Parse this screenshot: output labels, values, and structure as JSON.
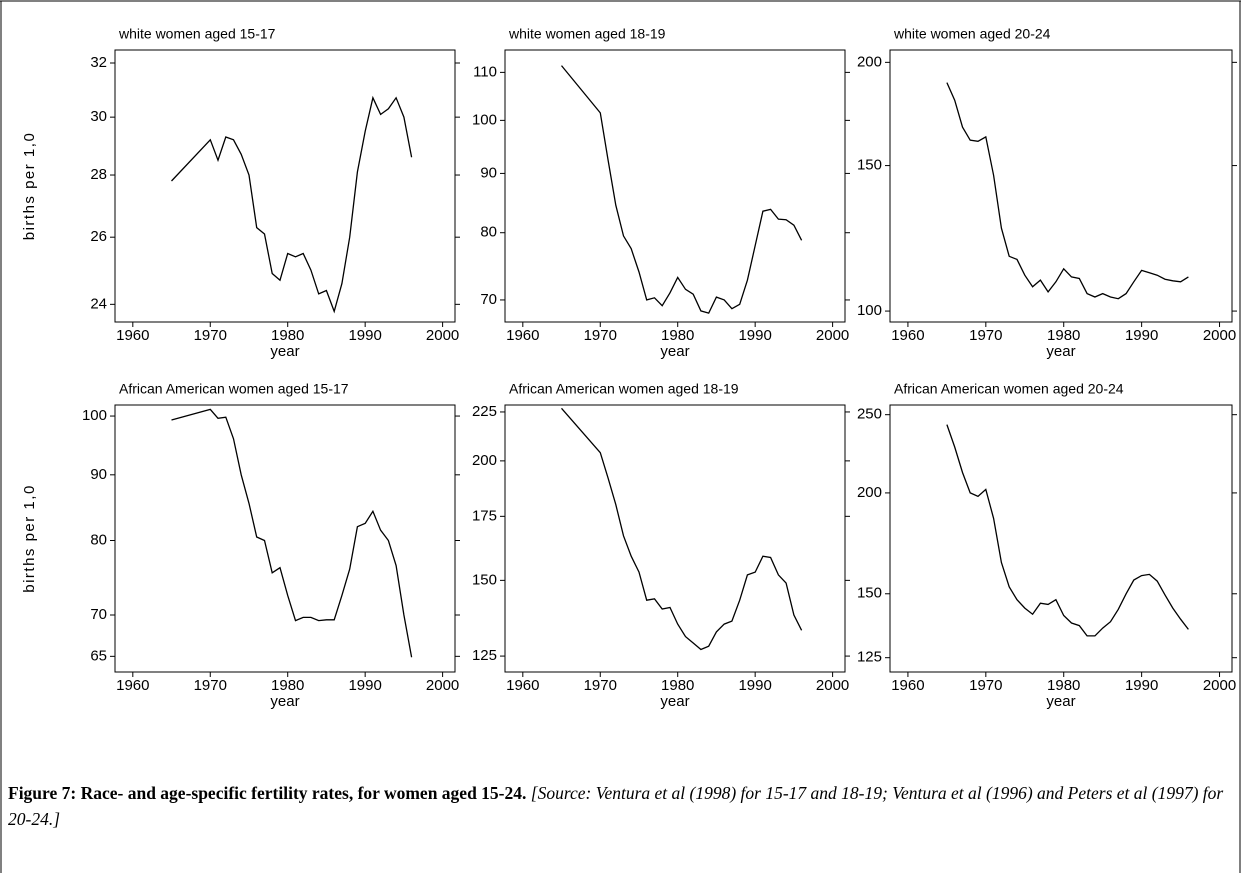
{
  "chart_data": [
    {
      "type": "line",
      "title": "white women aged 15-17",
      "xlabel": "year",
      "ylabel": "births per 1,0",
      "color": "#000000",
      "ylog": true,
      "x": [
        1965,
        1970,
        1971,
        1972,
        1973,
        1974,
        1975,
        1976,
        1977,
        1978,
        1979,
        1980,
        1981,
        1982,
        1983,
        1984,
        1985,
        1986,
        1987,
        1988,
        1989,
        1990,
        1991,
        1992,
        1993,
        1994,
        1995,
        1996
      ],
      "values": [
        27.8,
        29.2,
        28.5,
        29.3,
        29.2,
        28.7,
        28.0,
        26.3,
        26.1,
        24.9,
        24.7,
        25.5,
        25.4,
        25.5,
        25.0,
        24.3,
        24.4,
        23.8,
        24.6,
        26.0,
        28.1,
        29.5,
        30.7,
        30.1,
        30.3,
        30.7,
        30.0,
        28.6
      ],
      "xlim": [
        1957.7,
        2001.6
      ],
      "xticks": [
        1960,
        1970,
        1980,
        1990,
        2000
      ],
      "ylim": [
        23.5,
        32.5
      ],
      "yticks": [
        24,
        26,
        28,
        30,
        32
      ]
    },
    {
      "type": "line",
      "title": "white women aged 18-19",
      "xlabel": "year",
      "color": "#000000",
      "ylog": true,
      "x": [
        1965,
        1970,
        1971,
        1972,
        1973,
        1974,
        1975,
        1976,
        1977,
        1978,
        1979,
        1980,
        1981,
        1982,
        1983,
        1984,
        1985,
        1986,
        1987,
        1988,
        1989,
        1990,
        1991,
        1992,
        1993,
        1994,
        1995,
        1996
      ],
      "values": [
        111.5,
        101.5,
        92.5,
        84.5,
        79.5,
        77.5,
        74,
        70,
        70.3,
        69.2,
        71,
        73.2,
        71.5,
        70.8,
        68.5,
        68.2,
        70.4,
        70,
        68.8,
        69.4,
        72.8,
        78,
        83.5,
        83.8,
        82.2,
        82.1,
        81.2,
        78.8
      ],
      "xlim": [
        1957.7,
        2001.6
      ],
      "xticks": [
        1960,
        1970,
        1980,
        1990,
        2000
      ],
      "ylim": [
        67,
        115
      ],
      "yticks": [
        70,
        80,
        90,
        100,
        110
      ]
    },
    {
      "type": "line",
      "title": "white women aged 20-24",
      "xlabel": "year",
      "color": "#000000",
      "ylog": true,
      "x": [
        1965,
        1966,
        1967,
        1968,
        1969,
        1970,
        1971,
        1972,
        1973,
        1974,
        1975,
        1976,
        1977,
        1978,
        1979,
        1980,
        1981,
        1982,
        1983,
        1984,
        1985,
        1986,
        1987,
        1988,
        1989,
        1990,
        1991,
        1992,
        1993,
        1994,
        1995,
        1996
      ],
      "values": [
        189,
        180,
        167,
        161,
        160.5,
        162.5,
        146,
        126,
        116.5,
        115.5,
        110.5,
        107,
        109,
        105.5,
        108.5,
        112.5,
        110,
        109.5,
        105,
        104,
        105,
        104,
        103.5,
        105,
        108.5,
        112,
        111.3,
        110.5,
        109.3,
        108.8,
        108.5,
        110
      ],
      "xlim": [
        1957.7,
        2001.6
      ],
      "xticks": [
        1960,
        1970,
        1980,
        1990,
        2000
      ],
      "ylim": [
        97,
        207
      ],
      "yticks": [
        100,
        150,
        200
      ]
    },
    {
      "type": "line",
      "title": "African American women aged 15-17",
      "xlabel": "year",
      "ylabel": "births per 1,0",
      "color": "#000000",
      "ylog": true,
      "x": [
        1965,
        1970,
        1971,
        1972,
        1973,
        1974,
        1975,
        1976,
        1977,
        1978,
        1979,
        1980,
        1981,
        1982,
        1983,
        1984,
        1985,
        1986,
        1987,
        1988,
        1989,
        1990,
        1991,
        1992,
        1993,
        1994,
        1995,
        1996
      ],
      "values": [
        99.3,
        101.2,
        99.6,
        99.8,
        96,
        90,
        85.5,
        80.5,
        80,
        75.5,
        76.2,
        72.5,
        69.3,
        69.7,
        69.7,
        69.3,
        69.4,
        69.4,
        72.5,
        76,
        82,
        82.5,
        84.3,
        81.5,
        80,
        76.5,
        70,
        64.9
      ],
      "xlim": [
        1957.7,
        2001.6
      ],
      "xticks": [
        1960,
        1970,
        1980,
        1990,
        2000
      ],
      "ylim": [
        63.2,
        102
      ],
      "yticks": [
        65,
        70,
        80,
        90,
        100
      ]
    },
    {
      "type": "line",
      "title": "African American women aged 18-19",
      "xlabel": "year",
      "color": "#000000",
      "ylog": true,
      "x": [
        1965,
        1970,
        1971,
        1972,
        1973,
        1974,
        1975,
        1976,
        1977,
        1978,
        1979,
        1980,
        1981,
        1982,
        1983,
        1984,
        1985,
        1986,
        1987,
        1988,
        1989,
        1990,
        1991,
        1992,
        1993,
        1994,
        1995,
        1996
      ],
      "values": [
        227,
        204,
        192,
        180,
        167,
        159,
        153,
        143,
        143.5,
        140,
        140.5,
        135,
        131,
        129,
        127,
        128,
        132.5,
        135,
        136,
        143,
        152,
        153,
        159,
        158.5,
        152,
        149,
        138,
        133
      ],
      "xlim": [
        1957.7,
        2001.6
      ],
      "xticks": [
        1960,
        1970,
        1980,
        1990,
        2000
      ],
      "ylim": [
        120.3,
        228.8
      ],
      "yticks": [
        125,
        150,
        175,
        200,
        225
      ]
    },
    {
      "type": "line",
      "title": "African American women aged 20-24",
      "xlabel": "year",
      "color": "#000000",
      "ylog": true,
      "x": [
        1965,
        1966,
        1967,
        1968,
        1969,
        1970,
        1971,
        1972,
        1973,
        1974,
        1975,
        1976,
        1977,
        1978,
        1979,
        1980,
        1981,
        1982,
        1983,
        1984,
        1985,
        1986,
        1987,
        1988,
        1989,
        1990,
        1991,
        1992,
        1993,
        1994,
        1995,
        1996
      ],
      "values": [
        243,
        228,
        212,
        200,
        198,
        202,
        186,
        164,
        153,
        147.5,
        144,
        141.5,
        146,
        145.5,
        147.5,
        141,
        138,
        137,
        133,
        133,
        136,
        138.5,
        143.5,
        150,
        156,
        158,
        158.5,
        155.5,
        149.5,
        144,
        139.5,
        135.5
      ],
      "xlim": [
        1957.7,
        2001.6
      ],
      "xticks": [
        1960,
        1970,
        1980,
        1990,
        2000
      ],
      "ylim": [
        120,
        257
      ],
      "yticks": [
        125,
        150,
        200,
        250
      ]
    }
  ],
  "caption": {
    "label": "Figure 7: Race- and age-specific fertility rates, for women aged 15-24.",
    "source": "[Source: Ventura et al (1998) for 15-17 and 18-19; Ventura et al (1996) and Peters et al (1997) for 20-24.]"
  }
}
